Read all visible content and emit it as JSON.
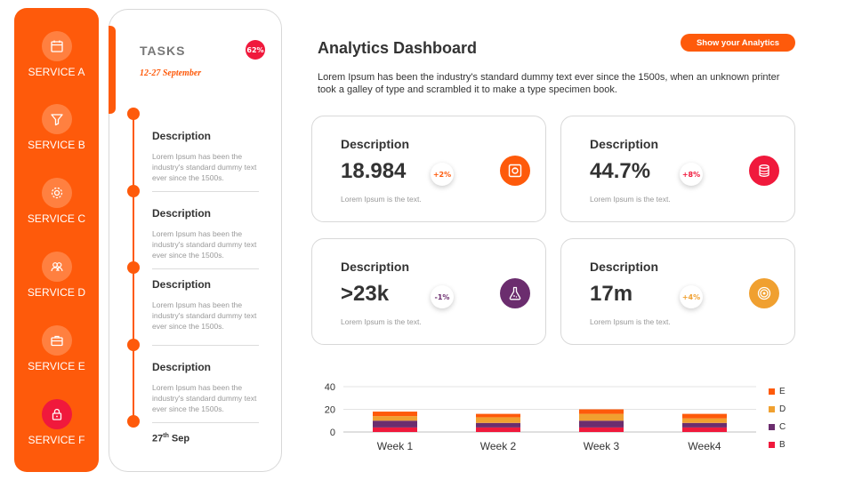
{
  "sidebar": {
    "items": [
      {
        "label": "SERVICE A",
        "icon": "calendar-icon"
      },
      {
        "label": "SERVICE B",
        "icon": "funnel-icon"
      },
      {
        "label": "SERVICE C",
        "icon": "gear-icon"
      },
      {
        "label": "SERVICE D",
        "icon": "users-icon"
      },
      {
        "label": "SERVICE E",
        "icon": "briefcase-icon"
      },
      {
        "label": "SERVICE F",
        "icon": "lock-icon",
        "active": true
      }
    ]
  },
  "tasks": {
    "title": "TASKS",
    "badge": "62%",
    "date_range": "12-27 September",
    "items": [
      {
        "heading": "Description",
        "text": "Lorem Ipsum has been the industry's standard dummy text ever since the 1500s."
      },
      {
        "heading": "Description",
        "text": "Lorem Ipsum has been the industry's standard dummy text ever since the 1500s."
      },
      {
        "heading": "Description",
        "text": "Lorem Ipsum has been the industry's standard dummy text ever since the 1500s."
      },
      {
        "heading": "Description",
        "text": "Lorem Ipsum has been the industry's standard dummy text ever since the 1500s."
      }
    ],
    "end_day": "27",
    "end_suffix": "th",
    "end_month": "Sep"
  },
  "header": {
    "title": "Analytics Dashboard",
    "button_label": "Show your Analytics",
    "intro": "Lorem Ipsum has been the industry's standard dummy text ever since the 1500s, when an unknown printer took a galley of type and scrambled it to make a type specimen book."
  },
  "cards": [
    {
      "title": "Description",
      "value": "18.984",
      "change": "+2%",
      "change_color": "#fe5a0b",
      "sub": "Lorem Ipsum is the text.",
      "icon": "safe-icon",
      "icon_color": "#fe5a0b"
    },
    {
      "title": "Description",
      "value": "44.7%",
      "change": "+8%",
      "change_color": "#f0193c",
      "sub": "Lorem Ipsum is the text.",
      "icon": "database-icon",
      "icon_color": "#f0193c"
    },
    {
      "title": "Description",
      "value": ">23k",
      "change": "-1%",
      "change_color": "#6b2d6e",
      "sub": "Lorem Ipsum is the text.",
      "icon": "flask-icon",
      "icon_color": "#6b2d6e"
    },
    {
      "title": "Description",
      "value": "17m",
      "change": "+4%",
      "change_color": "#f0a030",
      "sub": "Lorem Ipsum is the text.",
      "icon": "target-icon",
      "icon_color": "#f0a030"
    }
  ],
  "chart_data": {
    "type": "bar",
    "stacked": true,
    "categories": [
      "Week 1",
      "Week 2",
      "Week 3",
      "Week4"
    ],
    "yticks": [
      "0",
      "20",
      "40"
    ],
    "ylim": [
      0,
      40
    ],
    "grid": true,
    "legend_placement": "right",
    "series": [
      {
        "name": "B",
        "color": "#f0193c",
        "values": [
          4,
          4,
          4,
          4
        ]
      },
      {
        "name": "C",
        "color": "#6b2d6e",
        "values": [
          6,
          4,
          6,
          4
        ]
      },
      {
        "name": "D",
        "color": "#f0a030",
        "values": [
          4,
          5,
          6,
          4
        ]
      },
      {
        "name": "E",
        "color": "#fe5a0b",
        "values": [
          4,
          3,
          4,
          4
        ]
      }
    ],
    "legend_order": [
      "E",
      "D",
      "C",
      "B"
    ]
  }
}
